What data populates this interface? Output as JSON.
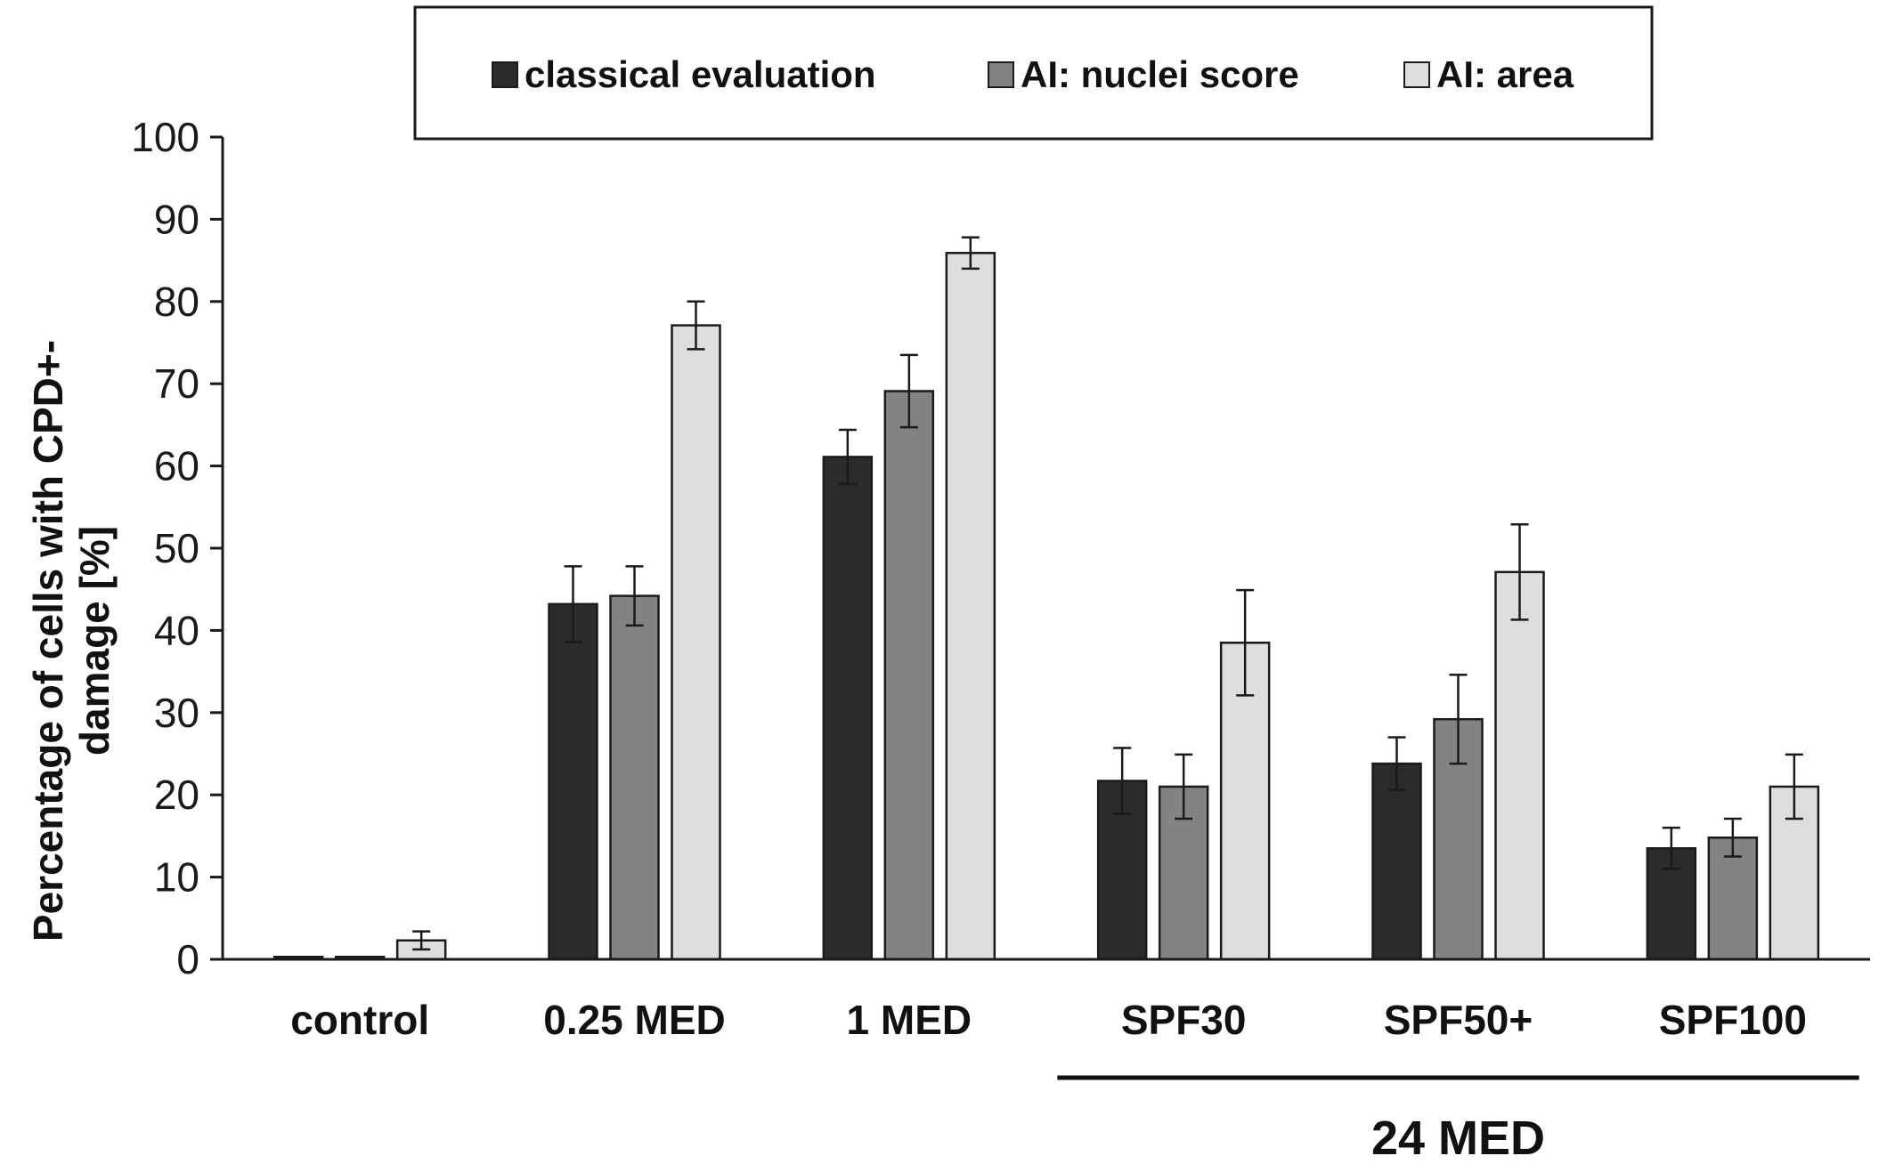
{
  "chart_data": {
    "type": "bar",
    "title": "",
    "xlabel": "",
    "ylabel_lines": [
      "Percentage of cells with CPD+-",
      "damage  [%]"
    ],
    "ylim": [
      0,
      100
    ],
    "yticks": [
      0,
      10,
      20,
      30,
      40,
      50,
      60,
      70,
      80,
      90,
      100
    ],
    "categories": [
      "control",
      "0.25 MED",
      "1 MED",
      "SPF30",
      "SPF50+",
      "SPF100"
    ],
    "group_annotation": {
      "label": "24 MED",
      "from_category": "SPF30",
      "to_category": "SPF100"
    },
    "legend_position": "top",
    "grid": false,
    "series": [
      {
        "name": "classical evaluation",
        "color": "#2b2b2b",
        "values": [
          0.3,
          43.2,
          61.1,
          21.7,
          23.8,
          13.5
        ],
        "errors": [
          0,
          4.6,
          3.3,
          4.0,
          3.2,
          2.5
        ]
      },
      {
        "name": "AI: nuclei score",
        "color": "#838383",
        "values": [
          0.3,
          44.2,
          69.1,
          21.0,
          29.2,
          14.8
        ],
        "errors": [
          0,
          3.6,
          4.4,
          3.9,
          5.4,
          2.3
        ]
      },
      {
        "name": "AI: area",
        "color": "#dedede",
        "values": [
          2.3,
          77.1,
          85.9,
          38.5,
          47.1,
          21.0
        ],
        "errors": [
          1.1,
          2.9,
          1.9,
          6.4,
          5.8,
          3.9
        ]
      }
    ]
  }
}
